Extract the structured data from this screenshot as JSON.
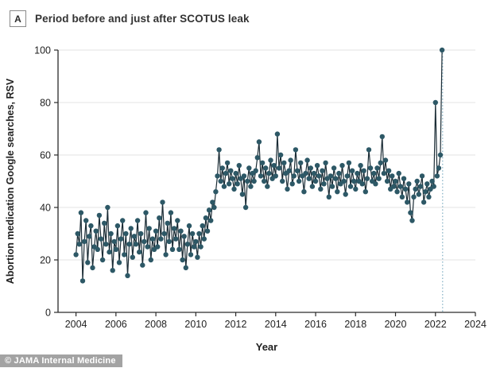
{
  "figure": {
    "panel_label": "A",
    "title": "Period before and just after SCOTUS leak",
    "watermark": "© JAMA Internal Medicine"
  },
  "chart_data": {
    "type": "scatter",
    "subtype": "connected-monthly-time-series",
    "title": "Period before and just after SCOTUS leak",
    "xlabel": "Year",
    "ylabel": "Abortion medication Google searches, RSV",
    "x_ticks": [
      2004,
      2006,
      2008,
      2010,
      2012,
      2014,
      2016,
      2018,
      2020,
      2022,
      2024
    ],
    "y_ticks": [
      0,
      20,
      40,
      60,
      80,
      100
    ],
    "xlim": [
      2003.1,
      2024
    ],
    "ylim": [
      0,
      100
    ],
    "grid": "horizontal",
    "legend": "none",
    "event_marker": {
      "type": "dotted-vline",
      "x": 2022.36,
      "meaning": "SCOTUS leak",
      "color": "#74a7bd"
    },
    "series": [
      {
        "name": "Abortion medication Google searches, RSV",
        "start": "2004-01",
        "interval": "monthly",
        "end": "2022-05",
        "values": [
          22,
          30,
          26,
          38,
          12,
          27,
          35,
          19,
          29,
          33,
          17,
          25,
          31,
          24,
          37,
          28,
          20,
          34,
          26,
          40,
          23,
          30,
          16,
          27,
          24,
          33,
          19,
          28,
          35,
          22,
          30,
          14,
          26,
          32,
          21,
          29,
          26,
          35,
          23,
          30,
          18,
          27,
          38,
          25,
          32,
          20,
          28,
          24,
          31,
          25,
          36,
          28,
          42,
          30,
          22,
          34,
          27,
          38,
          24,
          32,
          28,
          35,
          24,
          31,
          20,
          29,
          17,
          26,
          33,
          22,
          30,
          25,
          27,
          21,
          30,
          25,
          33,
          28,
          36,
          31,
          39,
          35,
          42,
          40,
          46,
          52,
          62,
          50,
          55,
          48,
          53,
          57,
          49,
          54,
          51,
          47,
          53,
          49,
          56,
          51,
          45,
          52,
          40,
          50,
          55,
          48,
          53,
          50,
          54,
          59,
          65,
          52,
          57,
          50,
          55,
          48,
          53,
          58,
          51,
          56,
          52,
          68,
          55,
          60,
          50,
          57,
          53,
          47,
          54,
          58,
          49,
          52,
          62,
          54,
          50,
          57,
          52,
          46,
          53,
          58,
          51,
          55,
          48,
          53,
          50,
          56,
          52,
          47,
          54,
          49,
          57,
          51,
          44,
          52,
          48,
          55,
          51,
          46,
          53,
          49,
          56,
          50,
          45,
          52,
          57,
          48,
          54,
          50,
          47,
          53,
          50,
          56,
          49,
          54,
          46,
          51,
          62,
          55,
          50,
          53,
          49,
          55,
          51,
          57,
          67,
          53,
          58,
          50,
          54,
          47,
          52,
          48,
          50,
          46,
          53,
          48,
          44,
          51,
          47,
          42,
          49,
          38,
          35,
          44,
          47,
          50,
          45,
          48,
          52,
          42,
          46,
          49,
          44,
          47,
          50,
          48,
          80,
          52,
          55,
          60,
          100
        ]
      }
    ],
    "colors": {
      "point": "#2d5866",
      "line": "#1b2c35",
      "grid": "#e3e3e3",
      "axis": "#2a2a2a",
      "text": "#222222",
      "event_line": "#74a7bd"
    }
  }
}
